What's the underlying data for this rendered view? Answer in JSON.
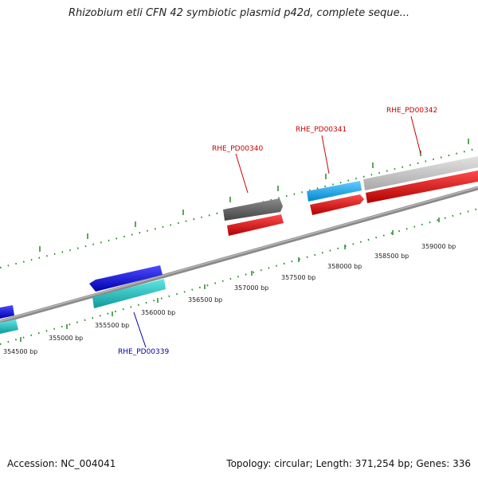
{
  "title": "Rhizobium etli CFN 42 symbiotic plasmid p42d, complete seque...",
  "accession": "Accession: NC_004041",
  "summary": "Topology: circular; Length: 371,254 bp; Genes: 336",
  "ticks": [
    "354500 bp",
    "355000 bp",
    "355500 bp",
    "356000 bp",
    "356500 bp",
    "357000 bp",
    "357500 bp",
    "358000 bp",
    "358500 bp",
    "359000 bp"
  ],
  "genes": {
    "g339": "RHE_PD00339",
    "g340": "RHE_PD00340",
    "g341": "RHE_PD00341",
    "g342": "RHE_PD00342"
  },
  "colors": {
    "red_label": "#cc0000",
    "blue_label": "#000099",
    "tick": "#228b22",
    "backbone": "#8a8a8a"
  }
}
